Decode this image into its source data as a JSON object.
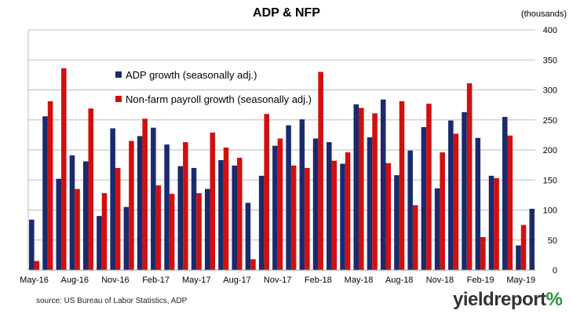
{
  "chart_data": {
    "type": "bar",
    "title": "ADP & NFP",
    "units_label": "(thousands)",
    "ylim": [
      0,
      400
    ],
    "yticks": [
      0,
      50,
      100,
      150,
      200,
      250,
      300,
      350,
      400
    ],
    "ytick_side": "right",
    "grid": true,
    "legend_placement": "upper-left inside",
    "colors": {
      "adp": "#1a2a6c",
      "nfp": "#d10f0f"
    },
    "categories": [
      "May-16",
      "Jun-16",
      "Jul-16",
      "Aug-16",
      "Sep-16",
      "Oct-16",
      "Nov-16",
      "Dec-16",
      "Jan-17",
      "Feb-17",
      "Mar-17",
      "Apr-17",
      "May-17",
      "Jun-17",
      "Jul-17",
      "Aug-17",
      "Sep-17",
      "Oct-17",
      "Nov-17",
      "Dec-17",
      "Jan-18",
      "Feb-18",
      "Mar-18",
      "Apr-18",
      "May-18",
      "Jun-18",
      "Jul-18",
      "Aug-18",
      "Sep-18",
      "Oct-18",
      "Nov-18",
      "Dec-18",
      "Jan-19",
      "Feb-19",
      "Mar-19",
      "Apr-19",
      "May-19"
    ],
    "xtick_labels": [
      "May-16",
      "Aug-16",
      "Nov-16",
      "Feb-17",
      "May-17",
      "Aug-17",
      "Nov-17",
      "Feb-18",
      "May-18",
      "Aug-18",
      "Nov-18",
      "Feb-19",
      "May-19"
    ],
    "series": [
      {
        "name": "ADP growth (seasonally adj.)",
        "key": "adp",
        "values": [
          84,
          256,
          152,
          191,
          181,
          90,
          236,
          105,
          223,
          237,
          209,
          173,
          170,
          135,
          183,
          174,
          112,
          157,
          207,
          241,
          251,
          219,
          213,
          177,
          276,
          221,
          284,
          158,
          199,
          238,
          136,
          249,
          263,
          220,
          157,
          255,
          41
        ]
      },
      {
        "name": "Non-farm payroll growth (seasonally adj.)",
        "key": "nfp",
        "values": [
          15,
          281,
          336,
          135,
          269,
          128,
          170,
          215,
          252,
          141,
          127,
          213,
          128,
          229,
          204,
          187,
          18,
          260,
          219,
          174,
          170,
          330,
          182,
          196,
          270,
          261,
          178,
          281,
          108,
          277,
          196,
          227,
          311,
          55,
          153,
          224,
          75
        ]
      }
    ],
    "last_adp_extra": {
      "category": "Jun-19",
      "value": 102
    }
  },
  "source": "source: US Bureau of Labor Statistics, ADP",
  "logo": {
    "text": "yieldreport",
    "pct": "%"
  }
}
